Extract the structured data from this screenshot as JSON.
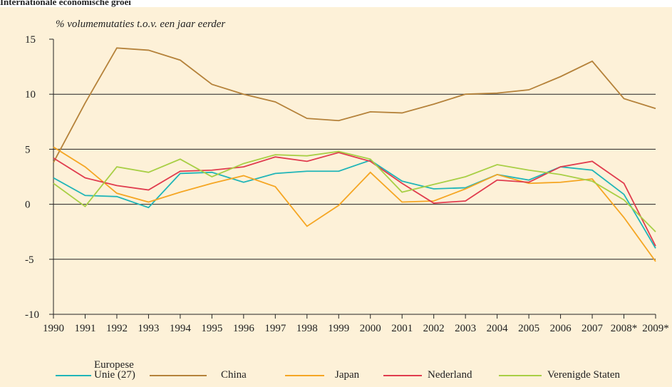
{
  "chart_data": {
    "type": "line",
    "title": "Internationale economische groei",
    "subtitle": "% volumemutaties t.o.v. een jaar eerder",
    "categories": [
      "1990",
      "1991",
      "1992",
      "1993",
      "1994",
      "1995",
      "1996",
      "1997",
      "1998",
      "1999",
      "2000",
      "2001",
      "2002",
      "2003",
      "2004",
      "2005",
      "2006",
      "2007",
      "2008*",
      "2009*"
    ],
    "series": [
      {
        "name": "Europese Unie (27)",
        "color": "#1fb5b8",
        "values": [
          2.4,
          0.8,
          0.7,
          -0.3,
          2.8,
          2.9,
          2.0,
          2.8,
          3.0,
          3.0,
          4.0,
          2.1,
          1.4,
          1.5,
          2.7,
          2.2,
          3.4,
          3.1,
          0.9,
          -4.0
        ]
      },
      {
        "name": "China",
        "color": "#b5823a",
        "values": [
          3.8,
          9.2,
          14.2,
          14.0,
          13.1,
          10.9,
          10.0,
          9.3,
          7.8,
          7.6,
          8.4,
          8.3,
          9.1,
          10.0,
          10.1,
          10.4,
          11.6,
          13.0,
          9.6,
          8.7
        ]
      },
      {
        "name": "Japan",
        "color": "#f5a623",
        "values": [
          5.2,
          3.4,
          1.0,
          0.2,
          1.1,
          1.9,
          2.6,
          1.6,
          -2.0,
          -0.1,
          2.9,
          0.2,
          0.3,
          1.4,
          2.7,
          1.9,
          2.0,
          2.3,
          -1.2,
          -5.2
        ]
      },
      {
        "name": "Nederland",
        "color": "#e03c4e",
        "values": [
          4.2,
          2.4,
          1.7,
          1.3,
          3.0,
          3.1,
          3.4,
          4.3,
          3.9,
          4.7,
          3.9,
          1.9,
          0.1,
          0.3,
          2.2,
          2.0,
          3.4,
          3.9,
          1.9,
          -3.8
        ]
      },
      {
        "name": "Verenigde Staten",
        "color": "#a8cf45",
        "values": [
          1.9,
          -0.2,
          3.4,
          2.9,
          4.1,
          2.5,
          3.7,
          4.5,
          4.4,
          4.8,
          4.1,
          1.1,
          1.8,
          2.5,
          3.6,
          3.1,
          2.7,
          2.1,
          0.4,
          -2.5
        ]
      }
    ],
    "ylim": [
      -10,
      15
    ],
    "yticks": [
      -10,
      -5,
      0,
      5,
      10,
      15
    ],
    "yticklabels_note": null,
    "grid": true
  }
}
